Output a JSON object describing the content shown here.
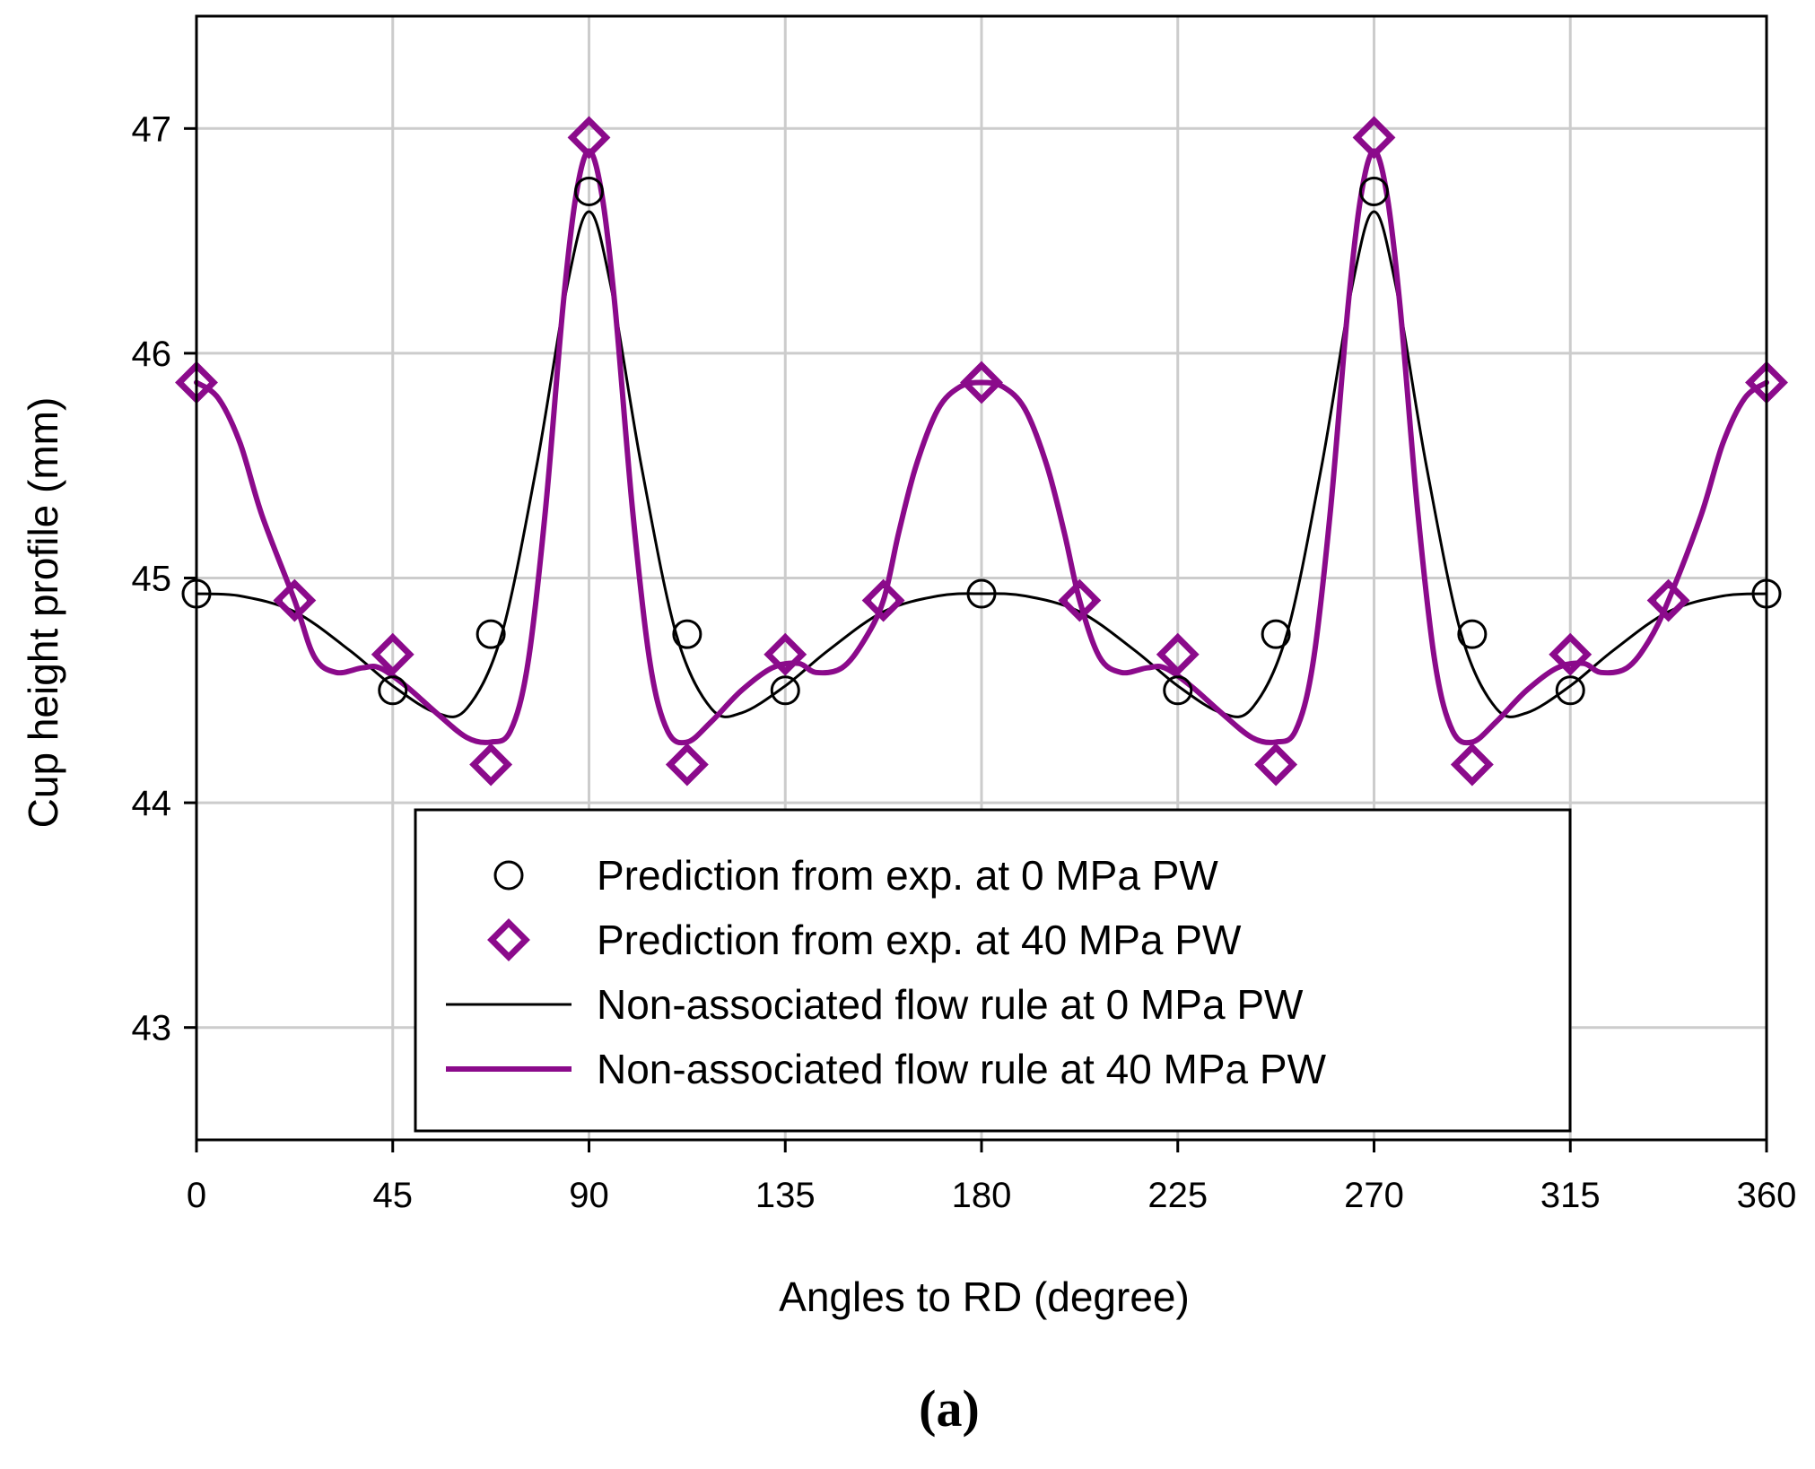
{
  "chart_data": {
    "type": "line",
    "xlabel": "Angles to RD (degree)",
    "ylabel": "Cup height profile (mm)",
    "panel_label": "(a)",
    "xlim": [
      0,
      360
    ],
    "ylim": [
      42.5,
      47.5
    ],
    "grid": true,
    "x_ticks": [
      0,
      45,
      90,
      135,
      180,
      225,
      270,
      315,
      360
    ],
    "y_ticks": [
      43,
      44,
      45,
      46,
      47
    ],
    "x_tick_labels": [
      "0",
      "45",
      "90",
      "135",
      "180",
      "225",
      "270",
      "315",
      "360"
    ],
    "y_tick_labels": [
      "43",
      "44",
      "45",
      "46",
      "47"
    ],
    "legend_position": "bottom-center",
    "colors": {
      "black": "#000000",
      "purple": "#8b0a8b",
      "grid": "#cccccc"
    },
    "series": [
      {
        "name": "Prediction from exp. at 0 MPa PW",
        "style": "markers",
        "marker": "circle",
        "color": "#000000",
        "x": [
          0,
          22.5,
          45,
          67.5,
          90,
          112.5,
          135,
          157.5,
          180,
          202.5,
          225,
          247.5,
          270,
          292.5,
          315,
          337.5,
          360
        ],
        "y": [
          44.93,
          44.9,
          44.5,
          44.75,
          46.72,
          44.75,
          44.5,
          44.9,
          44.93,
          44.9,
          44.5,
          44.75,
          46.72,
          44.75,
          44.5,
          44.9,
          44.93
        ]
      },
      {
        "name": "Prediction from exp. at 40 MPa PW",
        "style": "markers",
        "marker": "diamond",
        "color": "#8b0a8b",
        "x": [
          0,
          22.5,
          45,
          67.5,
          90,
          112.5,
          135,
          157.5,
          180,
          202.5,
          225,
          247.5,
          270,
          292.5,
          315,
          337.5,
          360
        ],
        "y": [
          45.87,
          44.9,
          44.66,
          44.17,
          46.96,
          44.17,
          44.66,
          44.9,
          45.87,
          44.9,
          44.66,
          44.17,
          46.96,
          44.17,
          44.66,
          44.9,
          45.87
        ]
      },
      {
        "name": "Non-associated flow rule at 0 MPa PW",
        "style": "line",
        "color": "#000000",
        "x": [
          0,
          10,
          22.5,
          35,
          45,
          55,
          62,
          70,
          78,
          85,
          90,
          95,
          102,
          110,
          118,
          125,
          135,
          145,
          157.5,
          170,
          180,
          190,
          202.5,
          215,
          225,
          235,
          242,
          250,
          258,
          265,
          270,
          275,
          282,
          290,
          298,
          305,
          315,
          325,
          337.5,
          350,
          360
        ],
        "y": [
          44.93,
          44.92,
          44.85,
          44.68,
          44.52,
          44.4,
          44.42,
          44.75,
          45.5,
          46.3,
          46.63,
          46.3,
          45.5,
          44.75,
          44.42,
          44.4,
          44.52,
          44.68,
          44.85,
          44.92,
          44.93,
          44.92,
          44.85,
          44.68,
          44.52,
          44.4,
          44.42,
          44.75,
          45.5,
          46.3,
          46.63,
          46.3,
          45.5,
          44.75,
          44.42,
          44.4,
          44.52,
          44.68,
          44.85,
          44.92,
          44.93
        ]
      },
      {
        "name": "Non-associated flow rule at 40 MPa PW",
        "style": "line",
        "color": "#8b0a8b",
        "x": [
          0,
          5,
          10,
          15,
          22.5,
          27,
          32,
          38,
          42,
          48,
          55,
          62,
          67.5,
          72,
          76,
          80,
          84,
          87,
          90,
          93,
          96,
          100,
          104,
          108,
          112.5,
          118,
          125,
          132,
          138,
          142,
          148,
          153,
          157.5,
          161,
          165,
          170,
          175,
          180,
          185,
          190,
          195,
          199,
          202.5,
          207,
          212,
          218,
          222,
          228,
          235,
          242,
          247.5,
          252,
          256,
          260,
          264,
          267,
          270,
          273,
          276,
          280,
          284,
          288,
          292.5,
          298,
          305,
          312,
          318,
          322,
          328,
          333,
          337.5,
          345,
          350,
          355,
          360
        ],
        "y": [
          45.87,
          45.8,
          45.6,
          45.28,
          44.9,
          44.65,
          44.58,
          44.6,
          44.6,
          44.52,
          44.4,
          44.29,
          44.27,
          44.32,
          44.62,
          45.3,
          46.2,
          46.7,
          46.9,
          46.7,
          46.2,
          45.3,
          44.62,
          44.32,
          44.27,
          44.36,
          44.5,
          44.6,
          44.62,
          44.58,
          44.6,
          44.72,
          44.9,
          45.2,
          45.5,
          45.75,
          45.85,
          45.87,
          45.85,
          45.75,
          45.5,
          45.2,
          44.9,
          44.65,
          44.58,
          44.6,
          44.6,
          44.52,
          44.4,
          44.29,
          44.27,
          44.32,
          44.62,
          45.3,
          46.2,
          46.7,
          46.9,
          46.7,
          46.2,
          45.3,
          44.62,
          44.32,
          44.27,
          44.36,
          44.5,
          44.6,
          44.62,
          44.58,
          44.6,
          44.72,
          44.9,
          45.28,
          45.6,
          45.8,
          45.87
        ]
      }
    ]
  }
}
